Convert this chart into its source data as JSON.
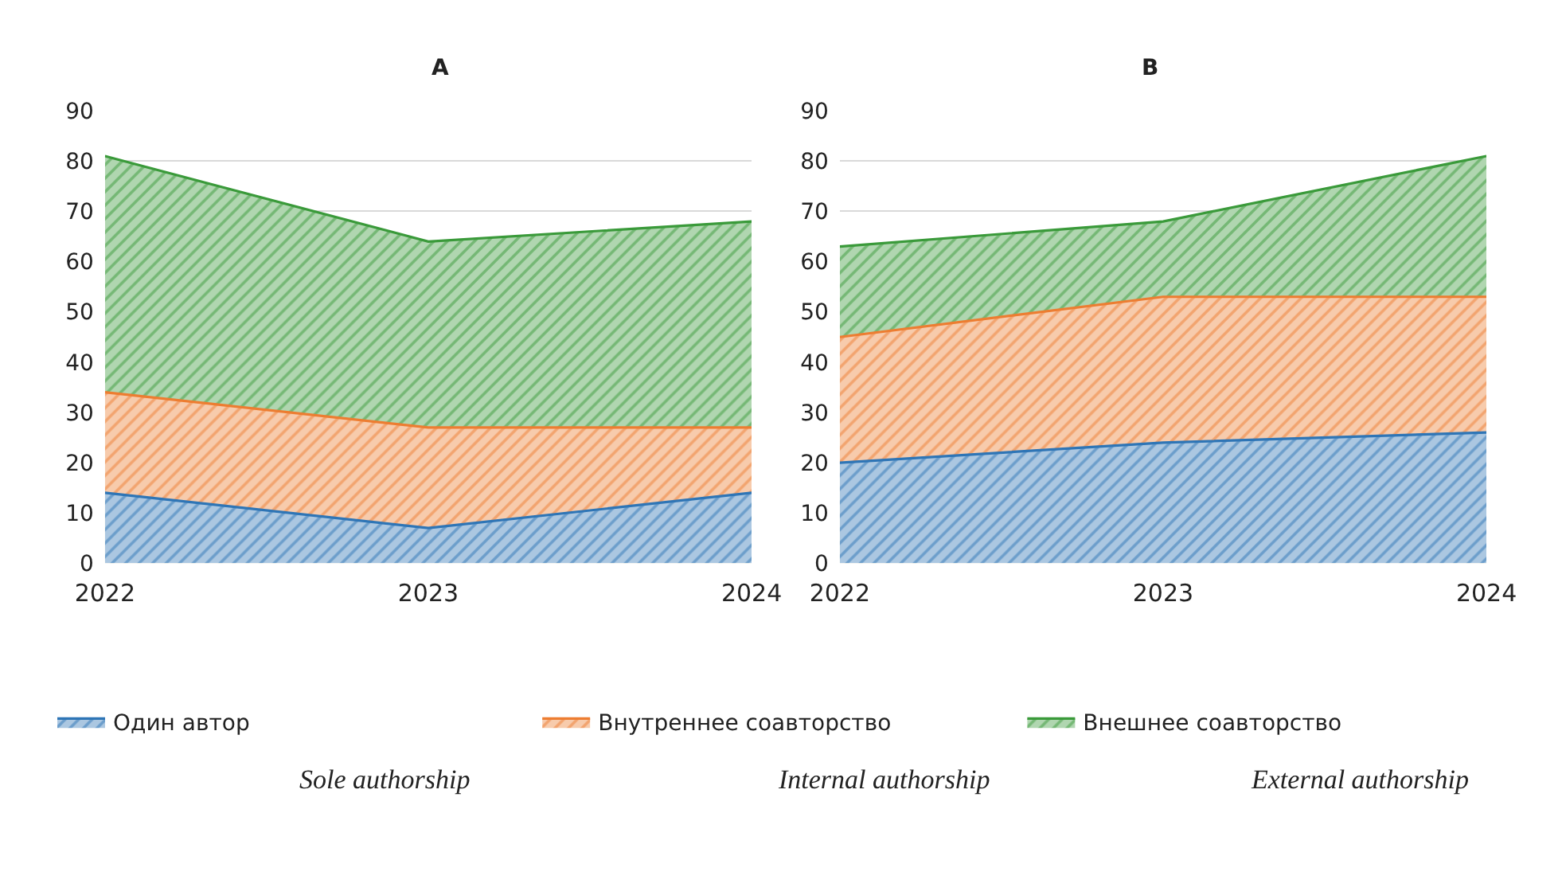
{
  "chart_data": [
    {
      "type": "area",
      "title": "A",
      "categories": [
        "2022",
        "2023",
        "2024"
      ],
      "stacked": true,
      "ylim": [
        0,
        90
      ],
      "yticks": [
        0,
        10,
        20,
        30,
        40,
        50,
        60,
        70,
        80,
        90
      ],
      "grid": "y",
      "legend": "bottom",
      "series": [
        {
          "name": "Один автор",
          "color": "#2e75b6",
          "values": [
            14,
            7,
            14
          ]
        },
        {
          "name": "Внутреннее соавторство",
          "color": "#ed7d31",
          "values": [
            20,
            20,
            13
          ]
        },
        {
          "name": "Внешнее соавторство",
          "color": "#3a9a3a",
          "values": [
            47,
            37,
            41
          ]
        }
      ],
      "annotations": [
        "Sole authorship",
        "Internal authorship",
        "External authorship"
      ]
    },
    {
      "type": "area",
      "title": "B",
      "categories": [
        "2022",
        "2023",
        "2024"
      ],
      "stacked": true,
      "ylim": [
        0,
        90
      ],
      "yticks": [
        0,
        10,
        20,
        30,
        40,
        50,
        60,
        70,
        80,
        90
      ],
      "grid": "y",
      "legend": "bottom",
      "series": [
        {
          "color": "#2e75b6",
          "values": [
            20,
            24,
            26
          ]
        },
        {
          "color": "#ed7d31",
          "values": [
            25,
            29,
            27
          ]
        },
        {
          "color": "#3a9a3a",
          "values": [
            18,
            15,
            28
          ]
        }
      ]
    }
  ]
}
